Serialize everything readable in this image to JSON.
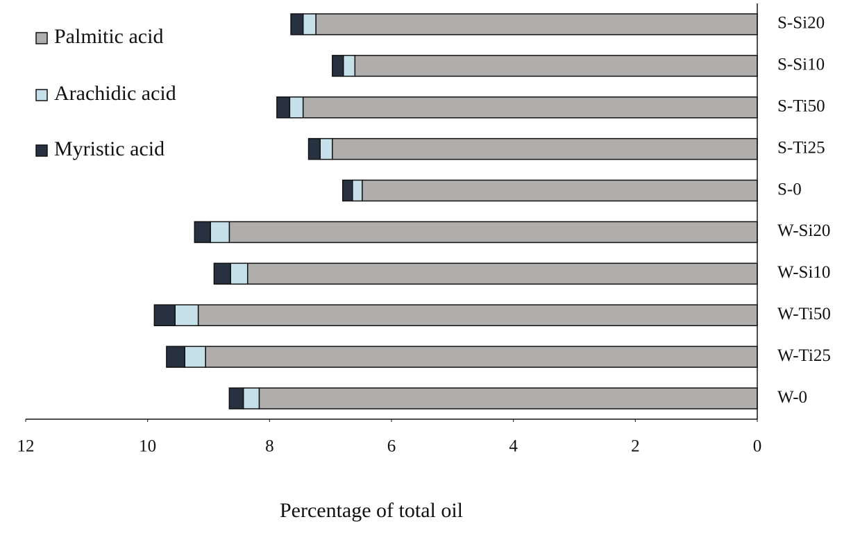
{
  "chart_data": {
    "type": "stacked-barh",
    "x_label": "Percentage of total oil",
    "categories": [
      "S-Si20",
      "S-Si10",
      "S-Ti50",
      "S-Ti25",
      "S-0",
      "W-Si20",
      "W-Si10",
      "W-Ti50",
      "W-Ti25",
      "W-0"
    ],
    "series": [
      {
        "name": "Palmitic acid",
        "color": "#b0adad",
        "values": [
          7.24,
          6.6,
          7.45,
          6.97,
          6.48,
          8.66,
          8.36,
          9.17,
          9.05,
          8.17
        ]
      },
      {
        "name": "Arachidic acid",
        "color": "#c6e0ea",
        "values": [
          0.21,
          0.19,
          0.22,
          0.2,
          0.16,
          0.31,
          0.28,
          0.38,
          0.34,
          0.26
        ]
      },
      {
        "name": "Myristic acid",
        "color": "#28313f",
        "values": [
          0.2,
          0.18,
          0.21,
          0.19,
          0.16,
          0.26,
          0.27,
          0.34,
          0.3,
          0.23
        ]
      }
    ],
    "xlim": [
      12,
      0
    ],
    "xticks": [
      12,
      10,
      8,
      6,
      4,
      2,
      0
    ],
    "legend": "upper-left"
  }
}
